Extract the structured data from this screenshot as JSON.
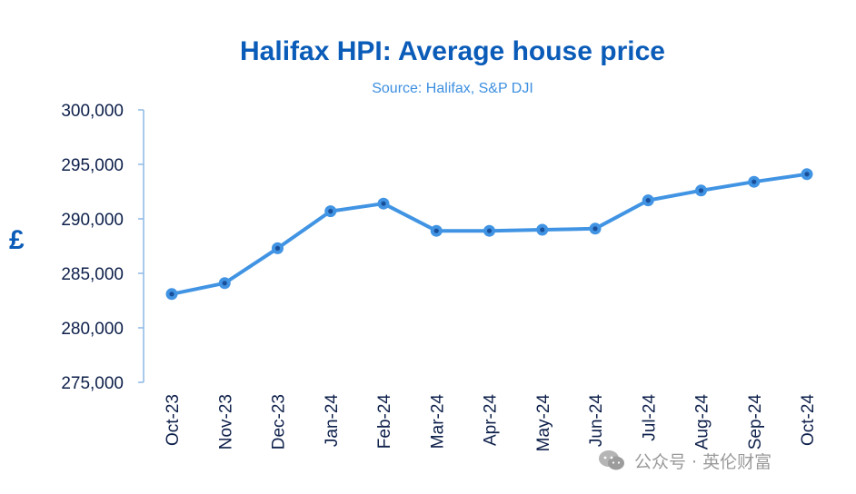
{
  "chart_data": {
    "type": "line",
    "title": "Halifax HPI: Average house price",
    "subtitle": "Source: Halifax,  S&P DJI",
    "ylabel": "£",
    "xlabel": "",
    "categories": [
      "Oct-23",
      "Nov-23",
      "Dec-23",
      "Jan-24",
      "Feb-24",
      "Mar-24",
      "Apr-24",
      "May-24",
      "Jun-24",
      "Jul-24",
      "Aug-24",
      "Sep-24",
      "Oct-24"
    ],
    "series": [
      {
        "values": [
          283100,
          284100,
          287300,
          290700,
          291400,
          288900,
          288900,
          289000,
          289100,
          291700,
          292600,
          293400,
          294100
        ]
      }
    ],
    "ylim": [
      275000,
      300000
    ],
    "yticks": [
      275000,
      280000,
      285000,
      290000,
      295000,
      300000
    ],
    "ytick_labels": [
      "275,000",
      "280,000",
      "285,000",
      "290,000",
      "295,000",
      "300,000"
    ],
    "grid": false,
    "legend": "none"
  },
  "watermark": {
    "text": "公众号 · 英伦财富",
    "icon": "wechat-icon"
  },
  "colors": {
    "title": "#0a5cb8",
    "subtitle": "#3d8fe0",
    "line": "#4194e3",
    "marker_center": "#1a4f9a",
    "axis": "#8db8e6",
    "tick_text": "#0d1f4a"
  }
}
